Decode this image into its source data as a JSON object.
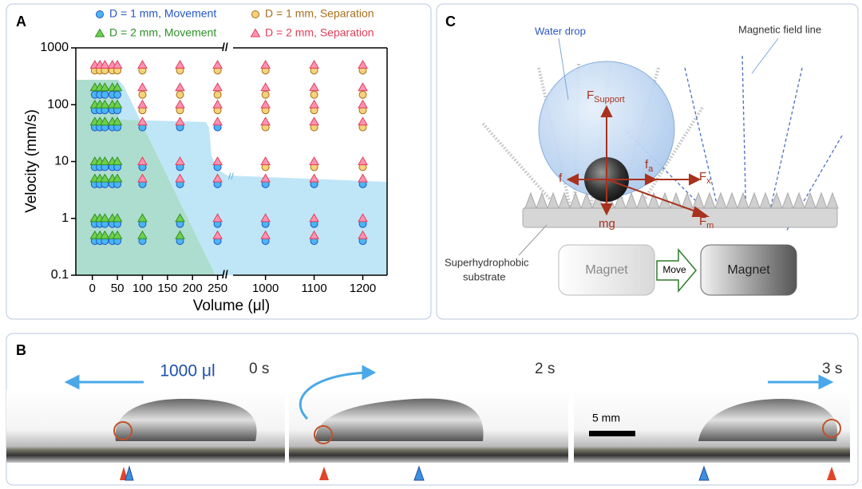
{
  "chart_data": {
    "type": "scatter",
    "panel_label": "A",
    "xlabel": "Volume (μl)",
    "ylabel": "Velocity (mm/s)",
    "ylog": true,
    "ylim": [
      0.1,
      1000
    ],
    "yticks": [
      0.1,
      1,
      10,
      100,
      1000
    ],
    "xlim": [
      -33,
      1250
    ],
    "xbreak": [
      265,
      930
    ],
    "xticks": [
      0,
      50,
      100,
      150,
      200,
      250,
      1000,
      1100,
      1200
    ],
    "legend": "top",
    "series": [
      {
        "name": "D = 1 mm, Movement",
        "marker": "circle",
        "color": "#49b6f2",
        "edge_color": "#2457c8",
        "x": [
          5,
          5,
          5,
          5,
          5,
          5,
          5,
          15,
          15,
          15,
          15,
          15,
          15,
          15,
          25,
          25,
          25,
          25,
          25,
          25,
          25,
          40,
          40,
          40,
          40,
          40,
          40,
          40,
          50,
          50,
          50,
          50,
          50,
          50,
          50,
          100,
          100,
          100,
          100,
          100,
          175,
          175,
          175,
          175,
          175,
          250,
          250,
          250,
          250,
          250,
          1000,
          1000,
          1000,
          1100,
          1100,
          1100,
          1200,
          1200,
          1200
        ],
        "values": [
          150,
          80,
          40,
          8,
          4,
          0.8,
          0.4,
          150,
          80,
          40,
          8,
          4,
          0.8,
          0.4,
          150,
          80,
          40,
          8,
          4,
          0.8,
          0.4,
          150,
          80,
          40,
          8,
          4,
          0.8,
          0.4,
          150,
          80,
          40,
          8,
          4,
          0.8,
          0.4,
          40,
          8,
          4,
          0.8,
          0.4,
          40,
          8,
          4,
          0.8,
          0.4,
          40,
          8,
          4,
          0.8,
          0.4,
          4,
          0.8,
          0.4,
          4,
          0.8,
          0.4,
          4,
          0.8,
          0.4
        ]
      },
      {
        "name": "D = 1 mm, Separation",
        "marker": "circle",
        "color": "#f6d27a",
        "edge_color": "#a8701e",
        "x": [
          5,
          15,
          25,
          40,
          50,
          100,
          100,
          100,
          175,
          175,
          175,
          250,
          250,
          250,
          1000,
          1000,
          1000,
          1000,
          1000,
          1100,
          1100,
          1100,
          1100,
          1100,
          1200,
          1200,
          1200,
          1200,
          1200
        ],
        "values": [
          400,
          400,
          400,
          400,
          400,
          400,
          150,
          80,
          400,
          150,
          80,
          400,
          150,
          80,
          400,
          150,
          80,
          40,
          8,
          400,
          150,
          80,
          40,
          8,
          400,
          150,
          80,
          40,
          8
        ]
      },
      {
        "name": "D = 2 mm, Movement",
        "marker": "triangle",
        "color": "#6fcf4a",
        "edge_color": "#2f8f2a",
        "x": [
          5,
          5,
          5,
          5,
          5,
          5,
          5,
          15,
          15,
          15,
          15,
          15,
          15,
          15,
          25,
          25,
          25,
          25,
          25,
          25,
          25,
          40,
          40,
          40,
          40,
          40,
          40,
          40,
          50,
          50,
          50,
          50,
          50,
          50,
          50,
          100,
          100,
          175,
          175
        ],
        "values": [
          200,
          100,
          50,
          10,
          5,
          1,
          0.5,
          200,
          100,
          50,
          10,
          5,
          1,
          0.5,
          200,
          100,
          50,
          10,
          5,
          1,
          0.5,
          200,
          100,
          50,
          10,
          5,
          1,
          0.5,
          200,
          100,
          50,
          10,
          5,
          1,
          0.5,
          1,
          0.5,
          1,
          0.5
        ]
      },
      {
        "name": "D = 2 mm, Separation",
        "marker": "triangle",
        "color": "#ff92b2",
        "edge_color": "#e0405a",
        "x": [
          5,
          15,
          25,
          40,
          50,
          100,
          100,
          100,
          100,
          100,
          100,
          175,
          175,
          175,
          175,
          175,
          175,
          250,
          250,
          250,
          250,
          250,
          250,
          250,
          250,
          1000,
          1000,
          1000,
          1000,
          1000,
          1000,
          1000,
          1000,
          1100,
          1100,
          1100,
          1100,
          1100,
          1100,
          1100,
          1100,
          1200,
          1200,
          1200,
          1200,
          1200,
          1200,
          1200,
          1200
        ],
        "values": [
          500,
          500,
          500,
          500,
          500,
          500,
          200,
          100,
          50,
          10,
          5,
          500,
          200,
          100,
          50,
          10,
          5,
          500,
          200,
          100,
          50,
          10,
          5,
          1,
          0.5,
          500,
          200,
          100,
          50,
          10,
          5,
          1,
          0.5,
          500,
          200,
          100,
          50,
          10,
          5,
          1,
          0.5,
          500,
          200,
          100,
          50,
          10,
          5,
          1,
          0.5
        ]
      }
    ]
  },
  "panel_b": {
    "label": "B",
    "volume": "1000 μl",
    "times": [
      "0 s",
      "2 s",
      "3 s"
    ],
    "scale_bar": "5 mm"
  },
  "panel_c": {
    "label": "C",
    "water_drop": "Water drop",
    "field_line": "Magnetic field line",
    "forces": [
      {
        "main": "F",
        "sub": "Support"
      },
      {
        "main": "f"
      },
      {
        "main": "f",
        "sub": "a"
      },
      {
        "main": "F",
        "sub": "x"
      },
      {
        "main": "F",
        "sub": "m"
      },
      {
        "main": "mg"
      }
    ],
    "substrate": [
      "Superhydrophobic",
      "substrate"
    ],
    "magnets": [
      "Magnet",
      "Magnet"
    ],
    "move": "Move"
  }
}
